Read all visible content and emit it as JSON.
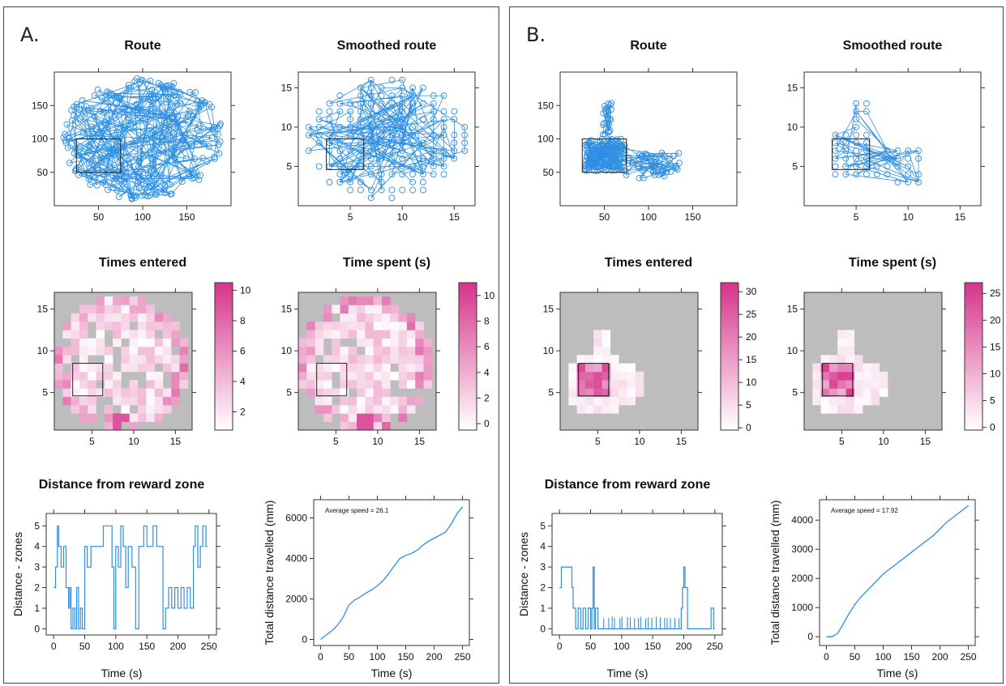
{
  "panels": [
    {
      "id": "A",
      "label": "A.",
      "route": {
        "title": "Route",
        "xticks": [
          50,
          100,
          150
        ],
        "yticks": [
          50,
          100,
          150
        ]
      },
      "smoothed": {
        "title": "Smoothed route",
        "xticks": [
          5,
          10,
          15
        ],
        "yticks": [
          5,
          10,
          15
        ]
      },
      "entered": {
        "title": "Times entered",
        "xticks": [
          5,
          10,
          15
        ],
        "yticks": [
          5,
          10,
          15
        ],
        "cticks": [
          2,
          4,
          6,
          8,
          10
        ],
        "cmax": 10.5
      },
      "spent": {
        "title": "Time spent (s)",
        "xticks": [
          5,
          10,
          15
        ],
        "yticks": [
          5,
          10,
          15
        ],
        "cticks": [
          0,
          2,
          4,
          6,
          8,
          10
        ],
        "cmax": 11
      },
      "distance": {
        "title": "Distance from reward zone",
        "xlabel": "Time (s)",
        "ylabel": "Distance - zones",
        "xticks": [
          0,
          50,
          100,
          150,
          200,
          250
        ],
        "yticks": [
          0,
          1,
          2,
          3,
          4,
          5
        ]
      },
      "total": {
        "xlabel": "Time (s)",
        "ylabel": "Total distance travelled (mm)",
        "annotation": "Average speed = 26.1",
        "xticks": [
          0,
          50,
          100,
          150,
          200,
          250
        ],
        "yticks": [
          0,
          2000,
          4000,
          6000
        ],
        "ymax": 6900
      }
    },
    {
      "id": "B",
      "label": "B.",
      "route": {
        "title": "Route",
        "xticks": [
          50,
          100,
          150
        ],
        "yticks": [
          50,
          100,
          150
        ]
      },
      "smoothed": {
        "title": "Smoothed route",
        "xticks": [
          5,
          10,
          15
        ],
        "yticks": [
          5,
          10,
          15
        ]
      },
      "entered": {
        "title": "Times entered",
        "xticks": [
          5,
          10,
          15
        ],
        "yticks": [
          5,
          10,
          15
        ],
        "cticks": [
          0,
          5,
          10,
          15,
          20,
          25,
          30
        ],
        "cmax": 32
      },
      "spent": {
        "title": "Time spent (s)",
        "xticks": [
          5,
          10,
          15
        ],
        "yticks": [
          5,
          10,
          15
        ],
        "cticks": [
          0,
          5,
          10,
          15,
          20,
          25
        ],
        "cmax": 27
      },
      "distance": {
        "title": "Distance from reward zone",
        "xlabel": "Time (s)",
        "ylabel": "Distance - zones",
        "xticks": [
          0,
          50,
          100,
          150,
          200,
          250
        ],
        "yticks": [
          0,
          1,
          2,
          3,
          4,
          5
        ]
      },
      "total": {
        "xlabel": "Time (s)",
        "ylabel": "Total distance travelled (mm)",
        "annotation": "Average speed = 17.92",
        "xticks": [
          0,
          50,
          100,
          150,
          200,
          250
        ],
        "yticks": [
          0,
          1000,
          2000,
          3000,
          4000
        ],
        "ymax": 4700
      }
    }
  ],
  "colors": {
    "line": "#2e8fe3",
    "heat_high": "#d6338a",
    "heat_low": "#ffffff",
    "background": "#bdbdbd"
  },
  "chart_data": [
    {
      "type": "line",
      "panel": "A",
      "name": "Distance from reward zone",
      "x": [
        0,
        3,
        6,
        8,
        12,
        16,
        20,
        24,
        26,
        28,
        31,
        34,
        37,
        40,
        43,
        46,
        50,
        54,
        60,
        75,
        80,
        88,
        94,
        97,
        100,
        104,
        108,
        112,
        116,
        120,
        126,
        132,
        137,
        140,
        145,
        150,
        155,
        160,
        166,
        172,
        176,
        180,
        185,
        190,
        195,
        200,
        205,
        210,
        215,
        220,
        225,
        228,
        232,
        236,
        240,
        245,
        248
      ],
      "y": [
        2,
        3,
        5,
        4,
        3,
        4,
        2,
        1,
        2,
        0,
        1,
        0,
        2,
        0,
        1,
        0,
        4,
        3,
        4,
        4,
        5,
        5,
        3,
        0,
        4,
        3,
        5,
        4,
        2,
        4,
        3,
        0,
        4,
        4,
        5,
        4,
        4,
        5,
        4,
        4,
        0,
        1,
        2,
        1,
        2,
        1,
        2,
        1,
        2,
        1,
        4,
        5,
        3,
        4,
        5,
        4,
        4
      ]
    },
    {
      "type": "line",
      "panel": "A",
      "name": "Total distance travelled",
      "x": [
        0,
        10,
        20,
        30,
        40,
        50,
        60,
        70,
        80,
        90,
        100,
        110,
        120,
        130,
        140,
        150,
        160,
        170,
        180,
        190,
        200,
        210,
        220,
        230,
        240,
        250
      ],
      "y": [
        0,
        220,
        430,
        700,
        1100,
        1700,
        1950,
        2100,
        2300,
        2450,
        2650,
        2900,
        3250,
        3650,
        4000,
        4150,
        4250,
        4400,
        4650,
        4850,
        5000,
        5150,
        5300,
        5700,
        6200,
        6550
      ]
    },
    {
      "type": "line",
      "panel": "B",
      "name": "Distance from reward zone",
      "x": [
        0,
        3,
        6,
        10,
        15,
        20,
        22,
        26,
        30,
        34,
        38,
        42,
        46,
        48,
        50,
        52,
        54,
        56,
        58,
        62,
        70,
        80,
        90,
        100,
        110,
        120,
        130,
        140,
        150,
        160,
        170,
        180,
        190,
        196,
        198,
        200,
        202,
        206,
        210,
        220,
        230,
        236,
        240,
        244,
        248,
        250
      ],
      "y": [
        2,
        3,
        3,
        3,
        3,
        2,
        1,
        0,
        1,
        0,
        1,
        0,
        1,
        1,
        0,
        1,
        3,
        0,
        1,
        0,
        0,
        0,
        0,
        0,
        0,
        0,
        0,
        0,
        0,
        0,
        0,
        0,
        0,
        1,
        2,
        3,
        2,
        0,
        0,
        0,
        0,
        0,
        0,
        1,
        0,
        0
      ]
    },
    {
      "type": "line",
      "panel": "B",
      "name": "Total distance travelled",
      "x": [
        0,
        10,
        20,
        30,
        40,
        50,
        60,
        70,
        80,
        90,
        100,
        110,
        120,
        130,
        140,
        150,
        160,
        170,
        180,
        190,
        200,
        210,
        220,
        230,
        240,
        250
      ],
      "y": [
        0,
        0,
        120,
        450,
        800,
        1100,
        1350,
        1550,
        1750,
        1950,
        2150,
        2300,
        2450,
        2600,
        2750,
        2900,
        3050,
        3200,
        3350,
        3500,
        3700,
        3900,
        4050,
        4200,
        4350,
        4500
      ]
    }
  ]
}
